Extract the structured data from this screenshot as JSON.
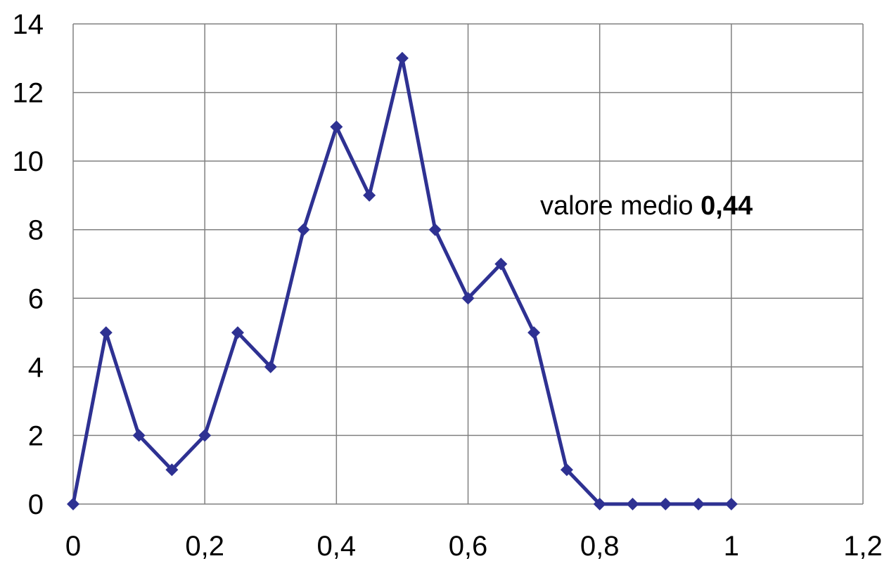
{
  "chart_data": {
    "type": "line",
    "title": "",
    "xlabel": "",
    "ylabel": "",
    "xlim": [
      0,
      1.2
    ],
    "ylim": [
      0,
      14
    ],
    "grid": true,
    "x_ticks": [
      0,
      0.2,
      0.4,
      0.6,
      0.8,
      1,
      1.2
    ],
    "x_tick_labels": [
      "0",
      "0,2",
      "0,4",
      "0,6",
      "0,8",
      "1",
      "1,2"
    ],
    "y_ticks": [
      0,
      2,
      4,
      6,
      8,
      10,
      12,
      14
    ],
    "y_tick_labels": [
      "0",
      "2",
      "4",
      "6",
      "8",
      "10",
      "12",
      "14"
    ],
    "series": [
      {
        "color": "#2e3192",
        "marker": "diamond",
        "x": [
          0,
          0.05,
          0.1,
          0.15,
          0.2,
          0.25,
          0.3,
          0.35,
          0.4,
          0.45,
          0.5,
          0.55,
          0.6,
          0.65,
          0.7,
          0.75,
          0.8,
          0.85,
          0.9,
          0.95,
          1
        ],
        "y": [
          0,
          5,
          2,
          1,
          2,
          5,
          4,
          8,
          11,
          9,
          13,
          8,
          6,
          7,
          5,
          1,
          0,
          0,
          0,
          0,
          0
        ]
      }
    ],
    "annotation": {
      "text": "valore medio ",
      "value": "0,44"
    }
  }
}
